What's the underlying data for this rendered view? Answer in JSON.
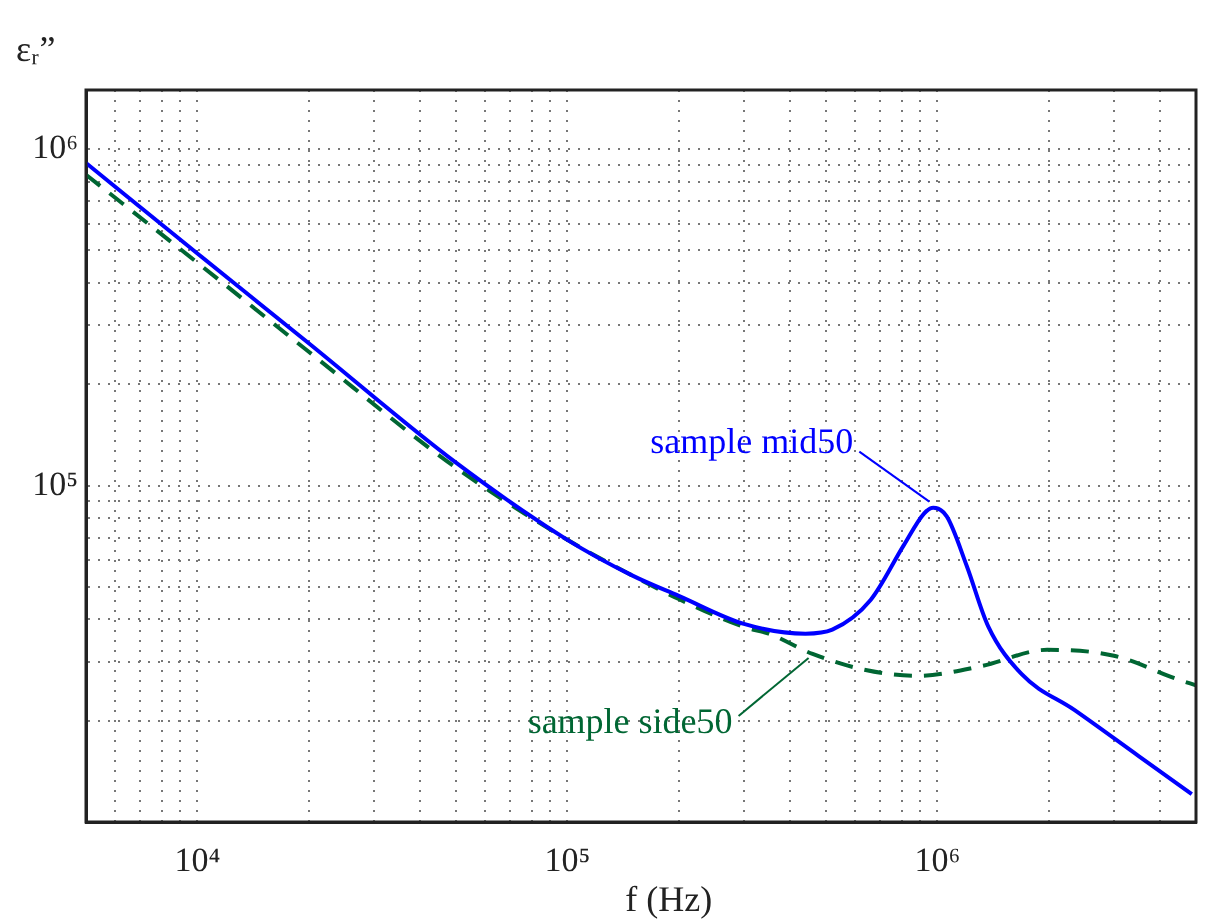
{
  "chart_data": {
    "type": "line",
    "xlabel": "f (Hz)",
    "ylabel": "εᵣ”",
    "log": "xy",
    "grid": true,
    "marker": "none",
    "legend": false,
    "xlim": [
      5000,
      5000000
    ],
    "xticks": [
      {
        "value": 5000,
        "label": null
      },
      {
        "value": 6000,
        "label": null
      },
      {
        "value": 7000,
        "label": null
      },
      {
        "value": 8000,
        "label": null
      },
      {
        "value": 9000,
        "label": null
      },
      {
        "value": 10000,
        "label": "10⁴"
      },
      {
        "value": 20000,
        "label": null
      },
      {
        "value": 30000,
        "label": null
      },
      {
        "value": 40000,
        "label": null
      },
      {
        "value": 50000,
        "label": null
      },
      {
        "value": 60000,
        "label": null
      },
      {
        "value": 70000,
        "label": null
      },
      {
        "value": 80000,
        "label": null
      },
      {
        "value": 90000,
        "label": null
      },
      {
        "value": 100000,
        "label": "10⁵"
      },
      {
        "value": 200000,
        "label": null
      },
      {
        "value": 300000,
        "label": null
      },
      {
        "value": 400000,
        "label": null
      },
      {
        "value": 500000,
        "label": null
      },
      {
        "value": 600000,
        "label": null
      },
      {
        "value": 700000,
        "label": null
      },
      {
        "value": 800000,
        "label": null
      },
      {
        "value": 900000,
        "label": null
      },
      {
        "value": 1000000,
        "label": "10⁶"
      },
      {
        "value": 2000000,
        "label": null
      },
      {
        "value": 3000000,
        "label": null
      },
      {
        "value": 4000000,
        "label": null
      },
      {
        "value": 5000000,
        "label": null
      }
    ],
    "ylim": [
      10000,
      1500000
    ],
    "yticks": [
      {
        "value": 10000,
        "label": null
      },
      {
        "value": 20000,
        "label": null
      },
      {
        "value": 30000,
        "label": null
      },
      {
        "value": 40000,
        "label": null
      },
      {
        "value": 50000,
        "label": null
      },
      {
        "value": 60000,
        "label": null
      },
      {
        "value": 70000,
        "label": null
      },
      {
        "value": 80000,
        "label": null
      },
      {
        "value": 90000,
        "label": null
      },
      {
        "value": 100000,
        "label": "10⁵"
      },
      {
        "value": 200000,
        "label": null
      },
      {
        "value": 300000,
        "label": null
      },
      {
        "value": 400000,
        "label": null
      },
      {
        "value": 500000,
        "label": null
      },
      {
        "value": 600000,
        "label": null
      },
      {
        "value": 700000,
        "label": null
      },
      {
        "value": 800000,
        "label": null
      },
      {
        "value": 900000,
        "label": null
      },
      {
        "value": 1000000,
        "label": "10⁶"
      }
    ],
    "series": [
      {
        "name": "sample mid50",
        "color": "#0000ff",
        "line_style": "solid",
        "x": [
          5000,
          10000,
          20000,
          50000,
          100000,
          150000,
          200000,
          300000,
          440000,
          520000,
          660000,
          810000,
          920000,
          975000,
          1060000,
          1200000,
          1370000,
          1690000,
          2350000,
          3500000,
          4870000
        ],
        "values": [
          910000,
          490000,
          265000,
          117000,
          69000,
          54000,
          47000,
          38800,
          36300,
          37300,
          45700,
          66300,
          82600,
          86000,
          81000,
          57800,
          38300,
          27500,
          21500,
          15700,
          12100
        ]
      },
      {
        "name": "sample side50",
        "color": "#006633",
        "line_style": "dashed",
        "x": [
          5000,
          10000,
          20000,
          50000,
          100000,
          150000,
          200000,
          300000,
          350000,
          460000,
          640000,
          885000,
          1320000,
          1980000,
          3000000,
          4480000,
          5000000
        ],
        "values": [
          840000,
          460000,
          250000,
          113000,
          69000,
          54000,
          46000,
          38000,
          36300,
          31600,
          28300,
          27200,
          29100,
          32500,
          31200,
          26500,
          25500
        ]
      }
    ]
  }
}
